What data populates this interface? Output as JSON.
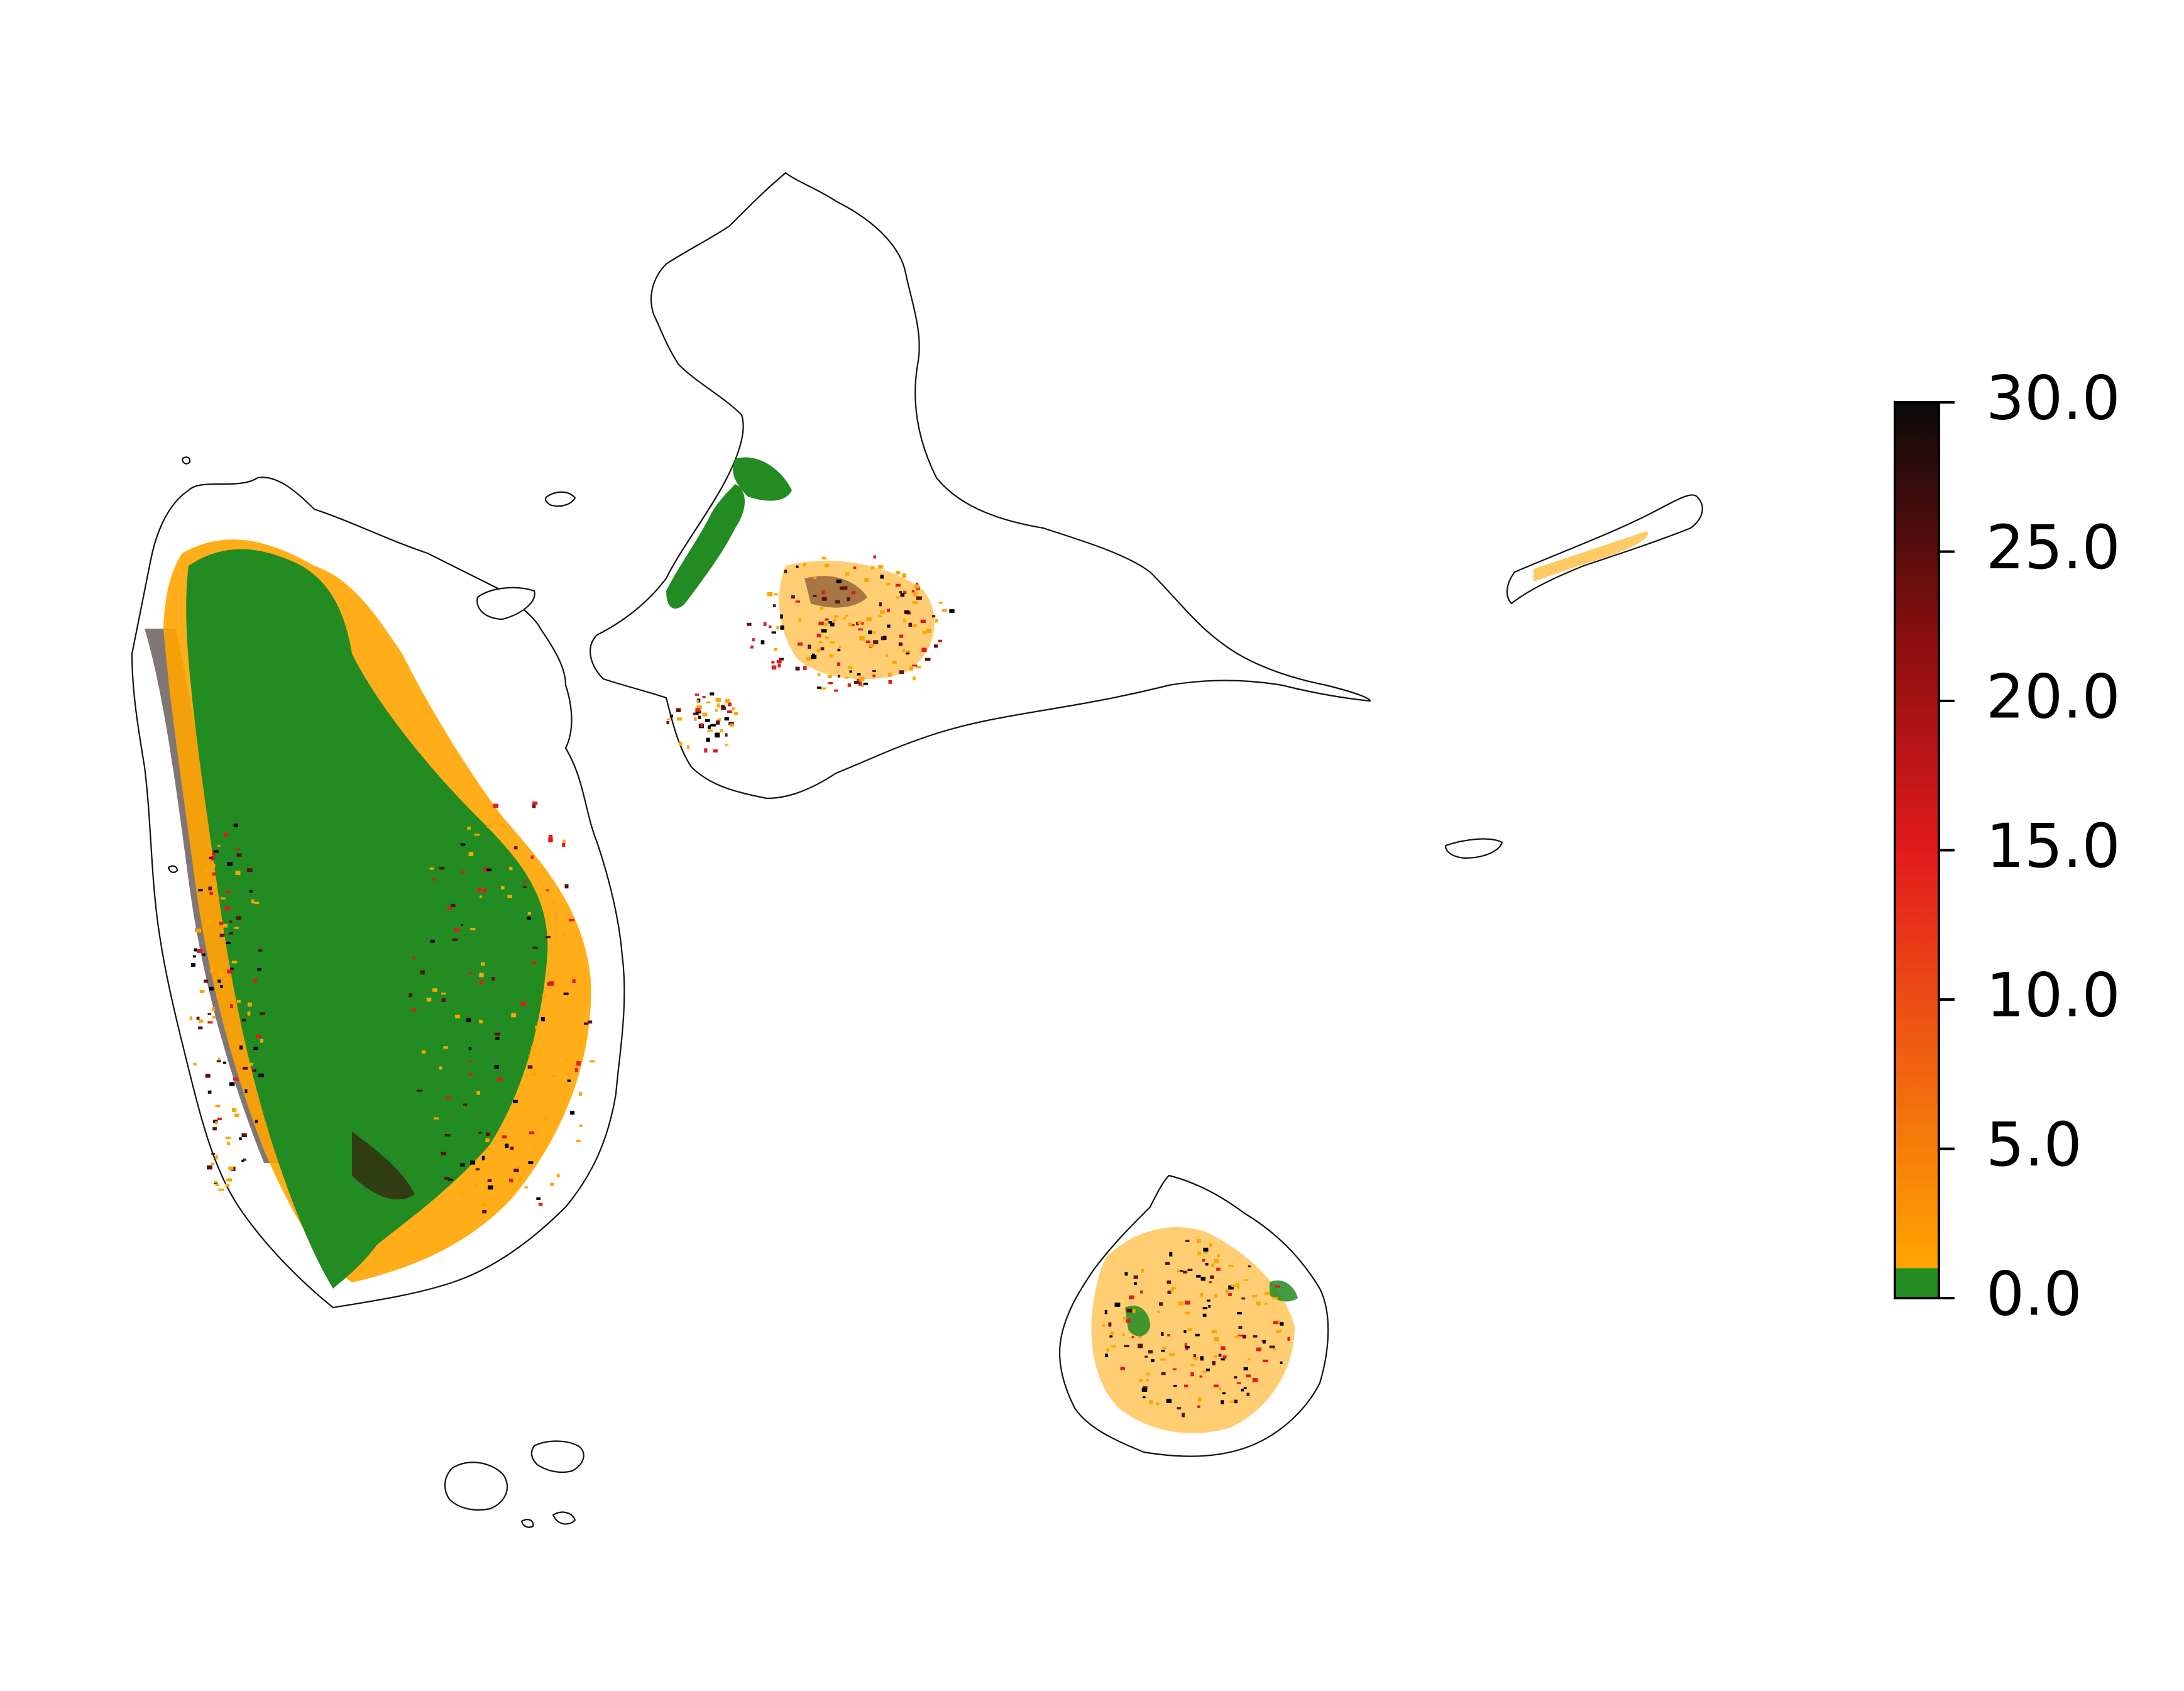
{
  "map": {
    "colors": {
      "land": "#ffffff",
      "coastline": "#111111",
      "low_band": "#228b22",
      "orange": "#ffa500",
      "red": "#e31a1c",
      "dark": "#000000"
    },
    "colorbar": {
      "min": 0.0,
      "max": 30.0,
      "low_band_upper": 1.0,
      "ticks": [
        "0.0",
        "5.0",
        "10.0",
        "15.0",
        "20.0",
        "25.0",
        "30.0"
      ],
      "tick_values": [
        0,
        5,
        10,
        15,
        20,
        25,
        30
      ],
      "stops": [
        {
          "value": 0,
          "color": "#228b22"
        },
        {
          "value": 1,
          "color": "#ffa500"
        },
        {
          "value": 8,
          "color": "#f06010"
        },
        {
          "value": 15,
          "color": "#e31a1c"
        },
        {
          "value": 22,
          "color": "#8b0f0f"
        },
        {
          "value": 30,
          "color": "#0a0a0a"
        }
      ]
    }
  }
}
